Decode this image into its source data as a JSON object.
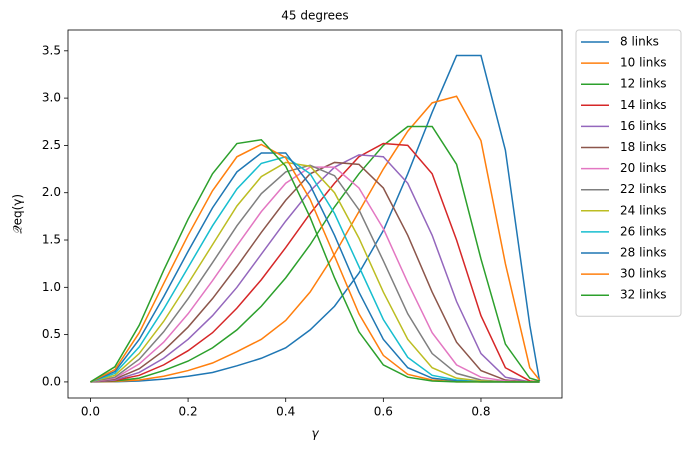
{
  "chart_data": {
    "type": "line",
    "title": "45 degrees",
    "xlabel": "γ",
    "ylabel": "𝒬eq(γ)",
    "x": [
      0,
      0.05,
      0.1,
      0.15,
      0.2,
      0.25,
      0.3,
      0.35,
      0.4,
      0.45,
      0.5,
      0.55,
      0.6,
      0.65,
      0.7,
      0.75,
      0.8,
      0.85,
      0.9,
      0.92
    ],
    "xlim": [
      -0.046,
      0.966
    ],
    "ylim": [
      -0.17,
      3.72
    ],
    "xticks": [
      {
        "value": 0,
        "label": "0.0"
      },
      0.2,
      0.4,
      0.6,
      0.8
    ],
    "yticks": [
      {
        "value": 0,
        "label": "0.0"
      },
      0.5,
      {
        "value": 1,
        "label": "1.0"
      },
      1.5,
      {
        "value": 2,
        "label": "2.0"
      },
      2.5,
      {
        "value": 3,
        "label": "3.0"
      },
      3.5
    ],
    "legend": "outside-upper-right",
    "series": [
      {
        "name": "8 links",
        "color": "#1f77b4",
        "values": [
          0,
          0.002,
          0.01,
          0.03,
          0.06,
          0.1,
          0.17,
          0.25,
          0.36,
          0.55,
          0.8,
          1.15,
          1.6,
          2.2,
          2.85,
          3.45,
          3.45,
          2.45,
          0.6,
          0.01
        ]
      },
      {
        "name": "10 links",
        "color": "#ff7f0e",
        "values": [
          0,
          0.005,
          0.02,
          0.06,
          0.12,
          0.2,
          0.32,
          0.45,
          0.65,
          0.95,
          1.35,
          1.8,
          2.25,
          2.65,
          2.95,
          3.02,
          2.55,
          1.25,
          0.15,
          0.02
        ]
      },
      {
        "name": "12 links",
        "color": "#2ca02c",
        "values": [
          0,
          0.01,
          0.04,
          0.12,
          0.22,
          0.36,
          0.55,
          0.8,
          1.1,
          1.45,
          1.85,
          2.2,
          2.5,
          2.7,
          2.7,
          2.3,
          1.3,
          0.4,
          0.04,
          0.01
        ]
      },
      {
        "name": "14 links",
        "color": "#d62728",
        "values": [
          0,
          0.015,
          0.07,
          0.18,
          0.33,
          0.52,
          0.78,
          1.08,
          1.42,
          1.78,
          2.1,
          2.38,
          2.52,
          2.5,
          2.2,
          1.5,
          0.7,
          0.15,
          0.01,
          0
        ]
      },
      {
        "name": "16 links",
        "color": "#9467bd",
        "values": [
          0,
          0.02,
          0.1,
          0.25,
          0.45,
          0.7,
          1.0,
          1.35,
          1.7,
          2.02,
          2.27,
          2.4,
          2.38,
          2.1,
          1.55,
          0.85,
          0.3,
          0.05,
          0,
          0
        ]
      },
      {
        "name": "18 links",
        "color": "#8c564b",
        "values": [
          0,
          0.03,
          0.14,
          0.33,
          0.58,
          0.88,
          1.22,
          1.58,
          1.92,
          2.2,
          2.32,
          2.3,
          2.05,
          1.55,
          0.95,
          0.42,
          0.12,
          0.02,
          0,
          0
        ]
      },
      {
        "name": "20 links",
        "color": "#e377c2",
        "values": [
          0,
          0.04,
          0.19,
          0.42,
          0.72,
          1.07,
          1.44,
          1.8,
          2.1,
          2.27,
          2.27,
          2.05,
          1.62,
          1.05,
          0.52,
          0.18,
          0.05,
          0.01,
          0,
          0
        ]
      },
      {
        "name": "22 links",
        "color": "#7f7f7f",
        "values": [
          0,
          0.05,
          0.24,
          0.53,
          0.88,
          1.26,
          1.65,
          1.99,
          2.22,
          2.29,
          2.18,
          1.82,
          1.28,
          0.72,
          0.3,
          0.09,
          0.02,
          0,
          0,
          0
        ]
      },
      {
        "name": "24 links",
        "color": "#bcbd22",
        "values": [
          0,
          0.07,
          0.3,
          0.64,
          1.04,
          1.45,
          1.86,
          2.17,
          2.32,
          2.28,
          2.0,
          1.52,
          0.95,
          0.45,
          0.15,
          0.04,
          0.01,
          0,
          0,
          0
        ]
      },
      {
        "name": "26 links",
        "color": "#17becf",
        "values": [
          0,
          0.09,
          0.37,
          0.77,
          1.21,
          1.65,
          2.04,
          2.31,
          2.38,
          2.2,
          1.78,
          1.22,
          0.66,
          0.26,
          0.07,
          0.02,
          0,
          0,
          0,
          0
        ]
      },
      {
        "name": "28 links",
        "color": "#1f77b4",
        "values": [
          0,
          0.11,
          0.45,
          0.9,
          1.38,
          1.84,
          2.22,
          2.42,
          2.42,
          2.08,
          1.55,
          0.95,
          0.45,
          0.15,
          0.04,
          0.01,
          0,
          0,
          0,
          0
        ]
      },
      {
        "name": "30 links",
        "color": "#ff7f0e",
        "values": [
          0,
          0.13,
          0.52,
          1.04,
          1.55,
          2.02,
          2.38,
          2.51,
          2.37,
          1.93,
          1.33,
          0.72,
          0.28,
          0.08,
          0.02,
          0,
          0,
          0,
          0,
          0
        ]
      },
      {
        "name": "32 links",
        "color": "#2ca02c",
        "values": [
          0,
          0.16,
          0.6,
          1.18,
          1.72,
          2.2,
          2.52,
          2.56,
          2.28,
          1.74,
          1.1,
          0.53,
          0.18,
          0.05,
          0.01,
          0,
          0,
          0,
          0,
          0
        ]
      }
    ]
  }
}
